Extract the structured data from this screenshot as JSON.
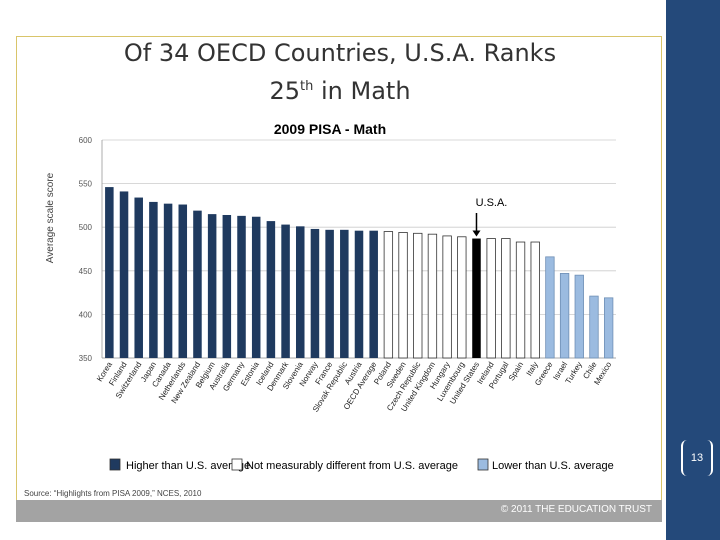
{
  "slide": {
    "title_line1": "Of 34 OECD Countries, U.S.A. Ranks",
    "title_line2_prefix": "25",
    "title_line2_sup": "th",
    "title_line2_suffix": " in Math",
    "page_number": "13",
    "footer": "© 2011 THE EDUCATION TRUST",
    "source": "Source: “Highlights from PISA 2009,” NCES, 2010",
    "colors": {
      "accent_bar": "#24497a",
      "frame": "#d9c56a",
      "footer_band": "#a3a3a3"
    }
  },
  "chart_data": {
    "type": "bar",
    "title": "2009 PISA - Math",
    "xlabel": "",
    "ylabel": "Average scale score",
    "ylim": [
      350,
      600
    ],
    "yticks": [
      350,
      400,
      450,
      500,
      550,
      600
    ],
    "annotation": "U.S.A.",
    "annotation_category": "United States",
    "categories": [
      "Korea",
      "Finland",
      "Switzerland",
      "Japan",
      "Canada",
      "Netherlands",
      "New Zealand",
      "Belgium",
      "Australia",
      "Germany",
      "Estonia",
      "Iceland",
      "Denmark",
      "Slovenia",
      "Norway",
      "France",
      "Slovak Republic",
      "Austria",
      "OECD Average",
      "Poland",
      "Sweden",
      "Czech Republic",
      "United Kingdom",
      "Hungary",
      "Luxembourg",
      "United States",
      "Ireland",
      "Portugal",
      "Spain",
      "Italy",
      "Greece",
      "Israel",
      "Turkey",
      "Chile",
      "Mexico"
    ],
    "values": [
      546,
      541,
      534,
      529,
      527,
      526,
      519,
      515,
      514,
      513,
      512,
      507,
      503,
      501,
      498,
      497,
      497,
      496,
      496,
      495,
      494,
      493,
      492,
      490,
      489,
      487,
      487,
      487,
      483,
      483,
      466,
      447,
      445,
      421,
      419
    ],
    "groups": [
      "higher",
      "higher",
      "higher",
      "higher",
      "higher",
      "higher",
      "higher",
      "higher",
      "higher",
      "higher",
      "higher",
      "higher",
      "higher",
      "higher",
      "higher",
      "higher",
      "higher",
      "higher",
      "higher",
      "same",
      "same",
      "same",
      "same",
      "same",
      "same",
      "usa",
      "same",
      "same",
      "same",
      "same",
      "lower",
      "lower",
      "lower",
      "lower",
      "lower"
    ],
    "legend": [
      {
        "key": "higher",
        "label": "Higher than U.S. average",
        "color": "#1f3a5f"
      },
      {
        "key": "same",
        "label": "Not measurably different from U.S. average",
        "color": "#ffffff"
      },
      {
        "key": "lower",
        "label": "Lower than U.S. average",
        "color": "#9bbbe0"
      }
    ],
    "usa_color": "#000000"
  }
}
